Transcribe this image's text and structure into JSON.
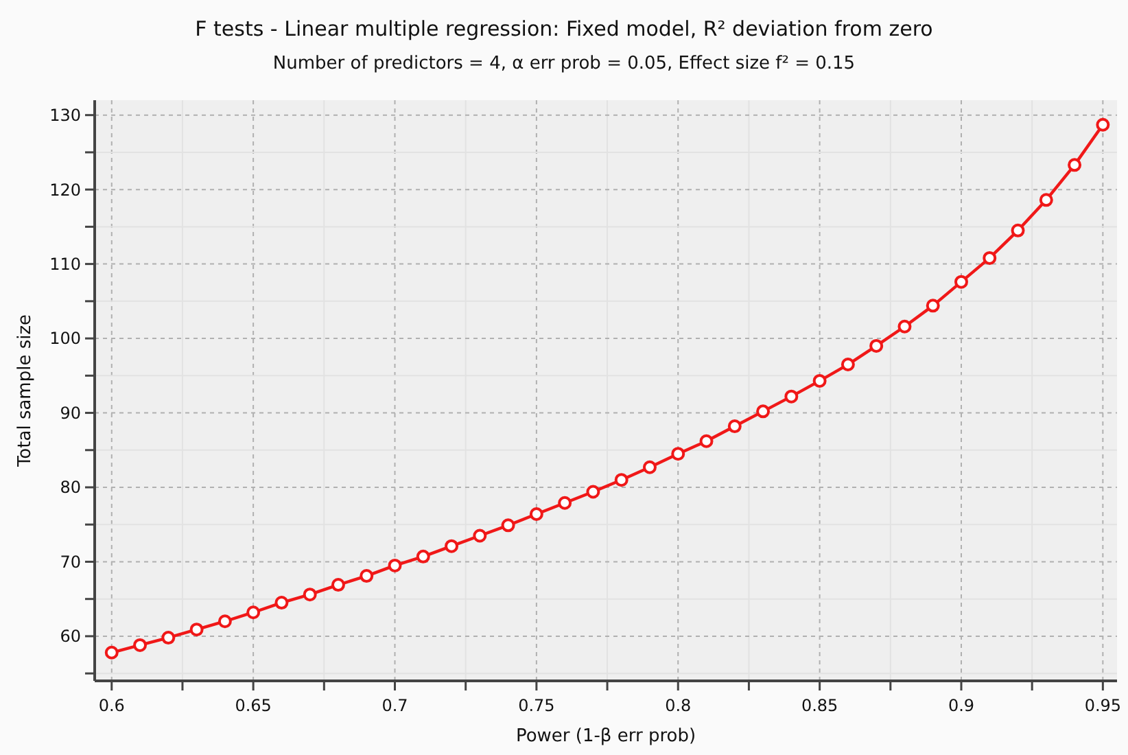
{
  "chart_data": {
    "type": "line",
    "title": "F tests - Linear multiple regression: Fixed model, R² deviation from zero",
    "subtitle": "Number of predictors = 4, α err prob = 0.05, Effect size f² = 0.15",
    "xlabel": "Power (1-β err prob)",
    "ylabel": "Total sample size",
    "x": [
      0.6,
      0.61,
      0.62,
      0.63,
      0.64,
      0.65,
      0.66,
      0.67,
      0.68,
      0.69,
      0.7,
      0.71,
      0.72,
      0.73,
      0.74,
      0.75,
      0.76,
      0.77,
      0.78,
      0.79,
      0.8,
      0.81,
      0.82,
      0.83,
      0.84,
      0.85,
      0.86,
      0.87,
      0.88,
      0.89,
      0.9,
      0.91,
      0.92,
      0.93,
      0.94,
      0.95
    ],
    "series": [
      {
        "color": "#f01818",
        "values": [
          57.8,
          58.8,
          59.8,
          60.9,
          62.0,
          63.2,
          64.5,
          65.6,
          66.9,
          68.1,
          69.5,
          70.7,
          72.1,
          73.5,
          74.9,
          76.4,
          77.9,
          79.4,
          81.0,
          82.7,
          84.5,
          86.2,
          88.2,
          90.2,
          92.2,
          94.3,
          96.5,
          99.0,
          101.6,
          104.4,
          107.6,
          110.8,
          114.5,
          118.6,
          123.3,
          128.7
        ]
      }
    ],
    "xlim": [
      0.594,
      0.955
    ],
    "ylim": [
      54,
      132
    ],
    "xticks": [
      0.6,
      {
        "value": 0.625,
        "label": null
      },
      0.65,
      {
        "value": 0.675,
        "label": null
      },
      0.7,
      {
        "value": 0.725,
        "label": null
      },
      0.75,
      {
        "value": 0.775,
        "label": null
      },
      0.8,
      {
        "value": 0.825,
        "label": null
      },
      0.85,
      {
        "value": 0.875,
        "label": null
      },
      0.9,
      {
        "value": 0.925,
        "label": null
      },
      0.95
    ],
    "yticks": [
      {
        "value": 55,
        "label": null
      },
      60,
      {
        "value": 65,
        "label": null
      },
      70,
      {
        "value": 75,
        "label": null
      },
      80,
      {
        "value": 85,
        "label": null
      },
      90,
      {
        "value": 95,
        "label": null
      },
      100,
      {
        "value": 105,
        "label": null
      },
      110,
      {
        "value": 115,
        "label": null
      },
      120,
      {
        "value": 125,
        "label": null
      },
      130
    ],
    "grid": true,
    "marker": "circle",
    "line_style": "solid"
  }
}
